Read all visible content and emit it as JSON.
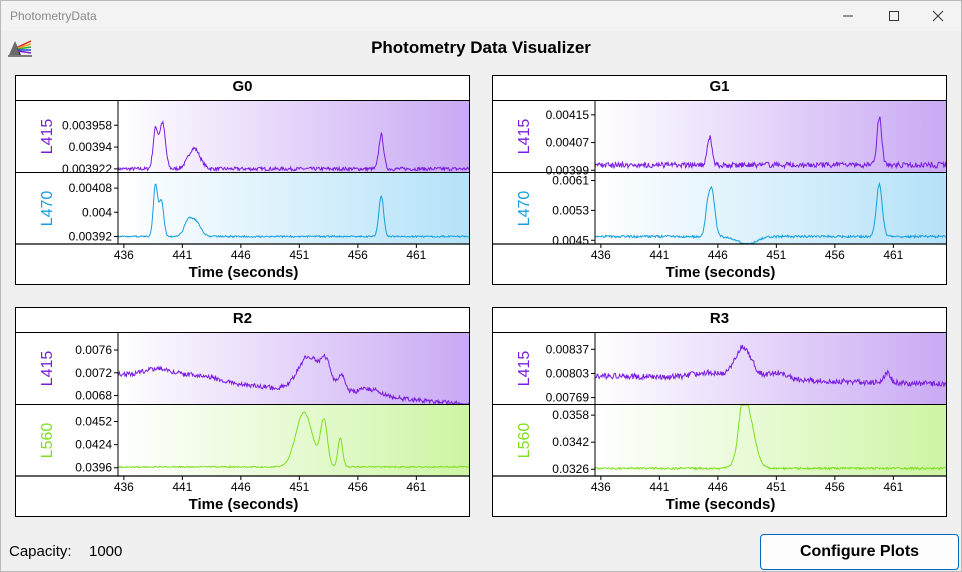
{
  "window": {
    "title": "PhotometryData"
  },
  "app": {
    "title": "Photometry Data Visualizer"
  },
  "footer": {
    "capacity_label": "Capacity:",
    "capacity_value": "1000",
    "configure_label": "Configure Plots"
  },
  "colors": {
    "l415": "#7a1de0",
    "l470": "#159fe0",
    "l560": "#7fe01f"
  },
  "chart_data": [
    {
      "type": "line",
      "title": "G0",
      "xlabel": "Time (seconds)",
      "xlim": [
        435.5,
        465.5
      ],
      "xticks": [
        "436",
        "441",
        "446",
        "451",
        "456",
        "461"
      ],
      "subplots": [
        {
          "ylabel": "L415",
          "color": "l415",
          "yticks": [
            "0.003958",
            "0.00394",
            "0.003922"
          ],
          "yvals": [
            0.003958,
            0.00394,
            0.003922
          ],
          "ylim": [
            0.00391945,
            0.003978
          ],
          "baseline": 0.003922,
          "noise": 1.5e-06,
          "peaks": [
            [
              438.7,
              0.2,
              3.2e-05
            ],
            [
              439.3,
              0.25,
              3.8e-05
            ],
            [
              442,
              0.5,
              1.7e-05
            ],
            [
              458,
              0.2,
              2.8e-05
            ]
          ]
        },
        {
          "ylabel": "L470",
          "color": "l470",
          "yticks": [
            "0.00408",
            "0.004",
            "0.00392"
          ],
          "yvals": [
            0.00408,
            0.004,
            0.00392
          ],
          "ylim": [
            0.003895,
            0.00413
          ],
          "baseline": 0.00392,
          "noise": 2.5e-06,
          "peaks": [
            [
              438.7,
              0.18,
              0.00017
            ],
            [
              439.2,
              0.2,
              0.00012
            ],
            [
              441.5,
              0.35,
              5e-05
            ],
            [
              442.2,
              0.4,
              4.5e-05
            ],
            [
              458,
              0.2,
              0.000135
            ]
          ]
        }
      ]
    },
    {
      "type": "line",
      "title": "G1",
      "xlabel": "Time (seconds)",
      "xlim": [
        435.5,
        465.5
      ],
      "xticks": [
        "436",
        "441",
        "446",
        "451",
        "456",
        "461"
      ],
      "subplots": [
        {
          "ylabel": "L415",
          "color": "l415",
          "yticks": [
            "0.00415",
            "0.00407",
            "0.00399"
          ],
          "yvals": [
            0.00415,
            0.00407,
            0.00399
          ],
          "ylim": [
            0.003985,
            0.00419
          ],
          "baseline": 0.004005,
          "noise": 8e-06,
          "peaks": [
            [
              445.3,
              0.2,
              8e-05
            ],
            [
              459.8,
              0.2,
              0.00014
            ]
          ]
        },
        {
          "ylabel": "L470",
          "color": "l470",
          "yticks": [
            "0.0061",
            "0.0053",
            "0.0045"
          ],
          "yvals": [
            0.0061,
            0.0053,
            0.0045
          ],
          "ylim": [
            0.0044,
            0.0063
          ],
          "baseline": 0.0046,
          "noise": 3e-05,
          "drift": [
            [
              448.5,
              0.8,
              -0.0002
            ]
          ],
          "peaks": [
            [
              445.1,
              0.2,
              0.0006
            ],
            [
              445.5,
              0.25,
              0.0012
            ],
            [
              459.8,
              0.25,
              0.0014
            ]
          ]
        }
      ]
    },
    {
      "type": "line",
      "title": "R2",
      "xlabel": "Time (seconds)",
      "xlim": [
        435.5,
        465.5
      ],
      "xticks": [
        "436",
        "441",
        "446",
        "451",
        "456",
        "461"
      ],
      "subplots": [
        {
          "ylabel": "L415",
          "color": "l415",
          "yticks": [
            "0.0076",
            "0.0072",
            "0.0068"
          ],
          "yvals": [
            0.0076,
            0.0072,
            0.0068
          ],
          "ylim": [
            0.00665,
            0.0079
          ],
          "baseline": 0.00718,
          "slope": -1.8e-05,
          "noise": 4e-05,
          "peaks": [
            [
              439,
              1.2,
              0.00015
            ],
            [
              442.5,
              1.5,
              0.0001
            ],
            [
              451.8,
              0.9,
              0.0006
            ],
            [
              453.3,
              0.45,
              0.00045
            ],
            [
              454.6,
              0.35,
              0.0003
            ],
            [
              457,
              1,
              0.00012
            ]
          ]
        },
        {
          "ylabel": "L560",
          "color": "l560",
          "yticks": [
            "0.0452",
            "0.0424",
            "0.0396"
          ],
          "yvals": [
            0.0452,
            0.0424,
            0.0396
          ],
          "ylim": [
            0.0386,
            0.0472
          ],
          "baseline": 0.0397,
          "noise": 8e-05,
          "peaks": [
            [
              451.4,
              0.7,
              0.0066
            ],
            [
              453.1,
              0.3,
              0.0055
            ],
            [
              454.5,
              0.2,
              0.0035
            ]
          ]
        }
      ]
    },
    {
      "type": "line",
      "title": "R3",
      "xlabel": "Time (seconds)",
      "xlim": [
        435.5,
        465.5
      ],
      "xticks": [
        "436",
        "441",
        "446",
        "451",
        "456",
        "461"
      ],
      "subplots": [
        {
          "ylabel": "L415",
          "color": "l415",
          "yticks": [
            "0.00837",
            "0.00803",
            "0.00769"
          ],
          "yvals": [
            0.00837,
            0.00803,
            0.00769
          ],
          "ylim": [
            0.0076,
            0.0086
          ],
          "baseline": 0.008,
          "slope": -4e-06,
          "noise": 4e-05,
          "peaks": [
            [
              448.2,
              0.7,
              0.00044
            ],
            [
              445.3,
              1.5,
              8e-05
            ],
            [
              460.5,
              0.25,
              0.00015
            ],
            [
              451,
              1,
              0.0001
            ]
          ]
        },
        {
          "ylabel": "L560",
          "color": "l560",
          "yticks": [
            "0.0358",
            "0.0342",
            "0.0326"
          ],
          "yvals": [
            0.0358,
            0.0342,
            0.0326
          ],
          "ylim": [
            0.0322,
            0.0364
          ],
          "baseline": 0.03265,
          "noise": 6e-05,
          "peaks": [
            [
              448.5,
              0.6,
              0.0034
            ],
            [
              448.1,
              0.3,
              0.0015
            ]
          ]
        }
      ]
    }
  ]
}
